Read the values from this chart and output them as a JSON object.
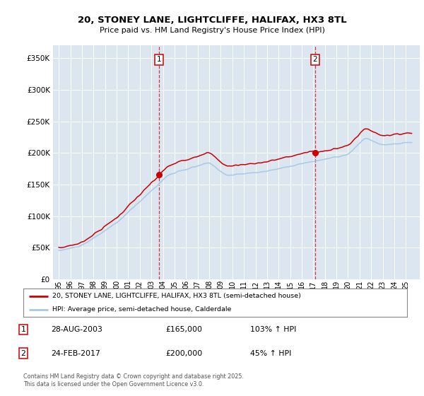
{
  "title_line1": "20, STONEY LANE, LIGHTCLIFFE, HALIFAX, HX3 8TL",
  "title_line2": "Price paid vs. HM Land Registry's House Price Index (HPI)",
  "bg_color": "#dce6f1",
  "red_color": "#cc0000",
  "blue_color": "#a8c8e8",
  "purchase1_date": 2003.65,
  "purchase1_price": 165000,
  "purchase1_label": "1",
  "purchase2_date": 2017.15,
  "purchase2_price": 200000,
  "purchase2_label": "2",
  "legend_line1": "20, STONEY LANE, LIGHTCLIFFE, HALIFAX, HX3 8TL (semi-detached house)",
  "legend_line2": "HPI: Average price, semi-detached house, Calderdale",
  "annotation1_date": "28-AUG-2003",
  "annotation1_price": "£165,000",
  "annotation1_hpi": "103% ↑ HPI",
  "annotation2_date": "24-FEB-2017",
  "annotation2_price": "£200,000",
  "annotation2_hpi": "45% ↑ HPI",
  "footer": "Contains HM Land Registry data © Crown copyright and database right 2025.\nThis data is licensed under the Open Government Licence v3.0.",
  "ylim_min": 0,
  "ylim_max": 370000,
  "xlim_min": 1994.5,
  "xlim_max": 2026.2
}
